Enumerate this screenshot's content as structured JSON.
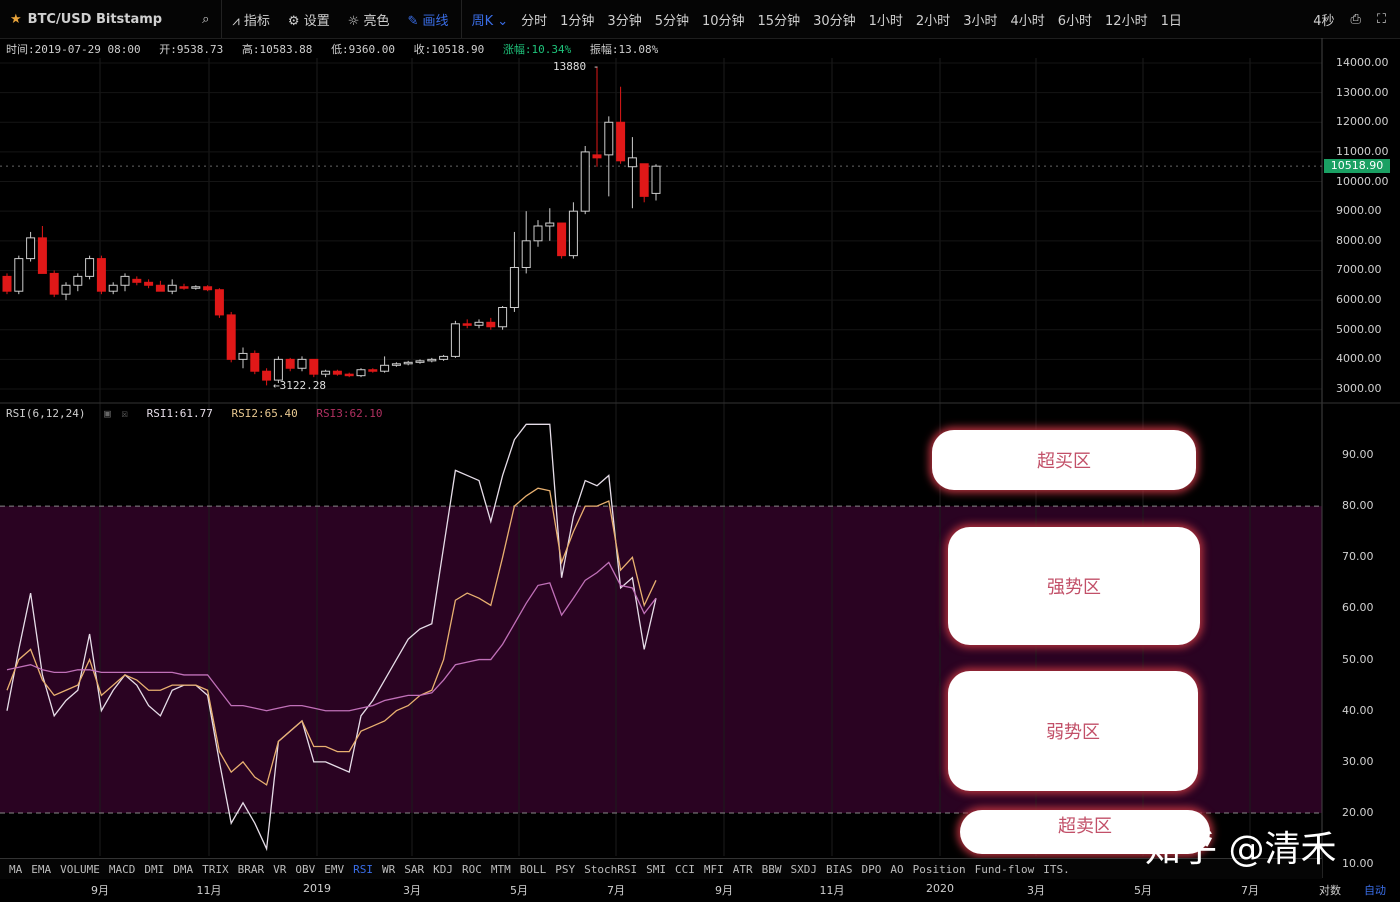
{
  "toolbar": {
    "symbol": "BTC/USD Bitstamp",
    "indicators_label": "指标",
    "settings_label": "设置",
    "theme_label": "亮色",
    "draw_label": "画线",
    "period_selected": "周K",
    "periods": [
      "分时",
      "1分钟",
      "3分钟",
      "5分钟",
      "10分钟",
      "15分钟",
      "30分钟",
      "1小时",
      "2小时",
      "3小时",
      "4小时",
      "6小时",
      "12小时",
      "1日"
    ],
    "countdown": "4秒"
  },
  "info": {
    "time": "时间:2019-07-29 08:00",
    "open": "开:9538.73",
    "high": "高:10583.88",
    "low": "低:9360.00",
    "close": "收:10518.90",
    "change": "涨幅:10.34%",
    "amplitude": "振幅:13.08%"
  },
  "colors": {
    "up": "#e8e8e8",
    "down": "#e01818",
    "rsi1": "#e6dde8",
    "rsi2": "#e8b070",
    "rsi3": "#c070b8",
    "band": "#2a0322",
    "price_tag": "#1aa063",
    "accent": "#3a6ee8"
  },
  "rsi_legend": {
    "title": "RSI(6,12,24)",
    "rsi1": "RSI1:61.77",
    "rsi2": "RSI2:65.40",
    "rsi3": "RSI3:62.10"
  },
  "zones": {
    "overbought": "超买区",
    "strong": "强势区",
    "weak": "弱势区",
    "oversold": "超卖区"
  },
  "indicators": [
    "MA",
    "EMA",
    "VOLUME",
    "MACD",
    "DMI",
    "DMA",
    "TRIX",
    "BRAR",
    "VR",
    "OBV",
    "EMV",
    "RSI",
    "WR",
    "SAR",
    "KDJ",
    "ROC",
    "MTM",
    "BOLL",
    "PSY",
    "StochRSI",
    "SMI",
    "CCI",
    "MFI",
    "ATR",
    "BBW",
    "SXDJ",
    "BIAS",
    "DPO",
    "AO",
    "Position",
    "Fund-flow",
    "ITS."
  ],
  "active_indicator": "RSI",
  "time_axis": [
    "9月",
    "11月",
    "2019",
    "3月",
    "5月",
    "7月",
    "9月",
    "11月",
    "2020",
    "3月",
    "5月",
    "7月"
  ],
  "scale_log": "对数",
  "scale_auto": "自动",
  "watermark": "知乎 @清禾",
  "chart_data": {
    "type": "candlestick",
    "price_axis": {
      "ticks": [
        14000,
        13000,
        12000,
        11000,
        10000,
        9000,
        8000,
        7000,
        6000,
        5000,
        4000,
        3000
      ],
      "range": [
        2700,
        14200
      ]
    },
    "last_price": "10518.90",
    "high_label": "13880",
    "low_label": "3122.28",
    "candles": [
      [
        6800,
        6900,
        6200,
        6300
      ],
      [
        6300,
        7500,
        6200,
        7400
      ],
      [
        7400,
        8300,
        7300,
        8100
      ],
      [
        8100,
        8500,
        6900,
        6900
      ],
      [
        6900,
        7000,
        6100,
        6200
      ],
      [
        6200,
        6600,
        6000,
        6500
      ],
      [
        6500,
        6900,
        6300,
        6800
      ],
      [
        6800,
        7500,
        6700,
        7400
      ],
      [
        7400,
        7500,
        6200,
        6300
      ],
      [
        6300,
        6600,
        6200,
        6500
      ],
      [
        6500,
        6900,
        6300,
        6800
      ],
      [
        6700,
        6800,
        6500,
        6600
      ],
      [
        6600,
        6700,
        6400,
        6500
      ],
      [
        6500,
        6650,
        6300,
        6300
      ],
      [
        6300,
        6700,
        6200,
        6500
      ],
      [
        6450,
        6550,
        6350,
        6400
      ],
      [
        6400,
        6500,
        6350,
        6450
      ],
      [
        6450,
        6500,
        6300,
        6350
      ],
      [
        6350,
        6400,
        5400,
        5500
      ],
      [
        5500,
        5600,
        3900,
        4000
      ],
      [
        4000,
        4400,
        3700,
        4200
      ],
      [
        4200,
        4300,
        3500,
        3600
      ],
      [
        3600,
        3700,
        3122,
        3300
      ],
      [
        3300,
        4100,
        3200,
        4000
      ],
      [
        4000,
        4050,
        3600,
        3700
      ],
      [
        3700,
        4100,
        3600,
        4000
      ],
      [
        4000,
        4000,
        3400,
        3500
      ],
      [
        3500,
        3650,
        3400,
        3600
      ],
      [
        3600,
        3650,
        3450,
        3500
      ],
      [
        3500,
        3550,
        3400,
        3450
      ],
      [
        3450,
        3700,
        3400,
        3650
      ],
      [
        3650,
        3700,
        3550,
        3600
      ],
      [
        3600,
        4100,
        3550,
        3800
      ],
      [
        3800,
        3900,
        3750,
        3850
      ],
      [
        3850,
        3950,
        3800,
        3900
      ],
      [
        3900,
        4000,
        3850,
        3950
      ],
      [
        3950,
        4050,
        3900,
        4000
      ],
      [
        4000,
        4150,
        3950,
        4100
      ],
      [
        4100,
        5300,
        4050,
        5200
      ],
      [
        5200,
        5350,
        5050,
        5150
      ],
      [
        5150,
        5350,
        5050,
        5250
      ],
      [
        5250,
        5400,
        5000,
        5100
      ],
      [
        5100,
        5800,
        5000,
        5750
      ],
      [
        5750,
        8300,
        5600,
        7100
      ],
      [
        7100,
        9000,
        6900,
        8000
      ],
      [
        8000,
        8700,
        7800,
        8500
      ],
      [
        8500,
        9100,
        8000,
        8600
      ],
      [
        8600,
        8600,
        7400,
        7500
      ],
      [
        7500,
        9300,
        7400,
        9000
      ],
      [
        9000,
        11200,
        8900,
        11000
      ],
      [
        10900,
        13880,
        10500,
        10800
      ],
      [
        10900,
        12200,
        9500,
        12000
      ],
      [
        12000,
        13200,
        10600,
        10700
      ],
      [
        10500,
        11500,
        9100,
        10800
      ],
      [
        10600,
        10600,
        9300,
        9500
      ],
      [
        9600,
        10583,
        9360,
        10519
      ]
    ],
    "rsi_axis": {
      "ticks": [
        90,
        80,
        70,
        60,
        50,
        40,
        30,
        20,
        10
      ],
      "overbought": 80,
      "oversold": 20
    },
    "series": [
      {
        "name": "RSI1",
        "values": [
          40,
          52,
          63,
          47,
          39,
          42,
          44,
          55,
          40,
          44,
          47,
          45,
          41,
          39,
          44,
          45,
          45,
          43,
          30,
          18,
          22,
          18,
          13,
          34,
          36,
          38,
          30,
          30,
          29,
          28,
          39,
          42,
          46,
          50,
          54,
          56,
          57,
          72,
          87,
          86,
          85,
          77,
          86,
          93,
          96,
          96,
          96,
          66,
          78,
          85,
          84,
          86,
          64,
          66,
          52,
          62
        ]
      },
      {
        "name": "RSI2",
        "values": [
          44,
          50,
          52,
          46,
          43,
          44,
          45,
          50,
          43,
          45,
          47,
          46,
          44,
          44,
          45,
          45,
          45,
          44,
          32,
          28,
          30,
          27,
          25.5,
          34,
          36,
          38,
          33,
          33,
          32,
          32,
          36,
          37,
          38,
          40,
          41,
          43,
          44,
          50,
          61.6,
          63,
          62,
          60.6,
          70,
          80,
          82,
          83.5,
          83,
          69,
          75,
          80,
          80,
          81,
          67.5,
          70,
          60.6,
          65.5
        ]
      },
      {
        "name": "RSI3",
        "values": [
          48,
          48.5,
          49,
          48,
          47.5,
          47.5,
          48,
          48,
          47.5,
          47.5,
          47.5,
          47.5,
          47.5,
          47.5,
          47.5,
          47,
          47,
          47,
          44,
          41,
          41,
          40.5,
          40,
          40.5,
          41,
          41,
          40.5,
          40,
          40,
          40,
          40.5,
          41,
          42,
          42.5,
          43,
          43,
          43.5,
          46,
          49,
          49.5,
          50,
          50,
          53,
          57,
          61,
          64.5,
          65,
          58.7,
          62,
          65.5,
          67,
          69,
          64.5,
          64,
          59,
          62
        ]
      }
    ]
  }
}
